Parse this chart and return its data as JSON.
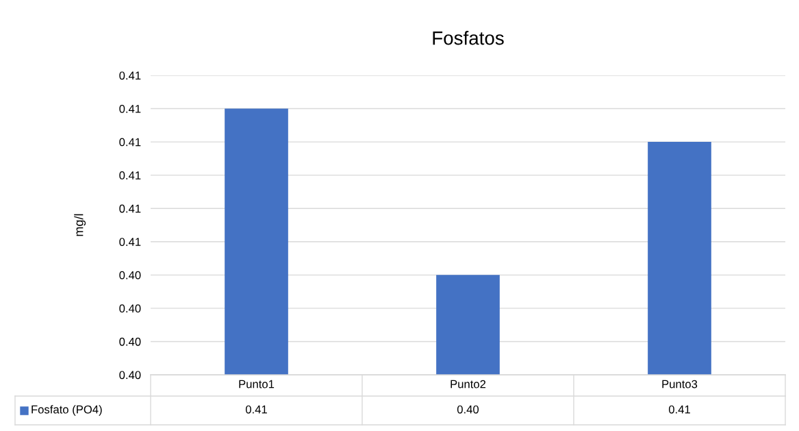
{
  "chart_data": {
    "type": "bar",
    "title": "Fosfatos",
    "ylabel": "mg/l",
    "categories": [
      "Punto1",
      "Punto2",
      "Punto3"
    ],
    "series": [
      {
        "name": "Fosfato (PO4)",
        "color": "#4472c4",
        "values": [
          0.407,
          0.4045,
          0.4065
        ],
        "value_labels": [
          "0.41",
          "0.40",
          "0.41"
        ]
      }
    ],
    "ylim": [
      0.403,
      0.4075
    ],
    "yticks": [
      {
        "value": 0.403,
        "label": "0.40"
      },
      {
        "value": 0.4035,
        "label": "0.40"
      },
      {
        "value": 0.404,
        "label": "0.40"
      },
      {
        "value": 0.4045,
        "label": "0.40"
      },
      {
        "value": 0.405,
        "label": "0.41"
      },
      {
        "value": 0.4055,
        "label": "0.41"
      },
      {
        "value": 0.406,
        "label": "0.41"
      },
      {
        "value": 0.4065,
        "label": "0.41"
      },
      {
        "value": 0.407,
        "label": "0.41"
      },
      {
        "value": 0.4075,
        "label": "0.41"
      }
    ],
    "grid": "y",
    "legend": "bottom"
  }
}
